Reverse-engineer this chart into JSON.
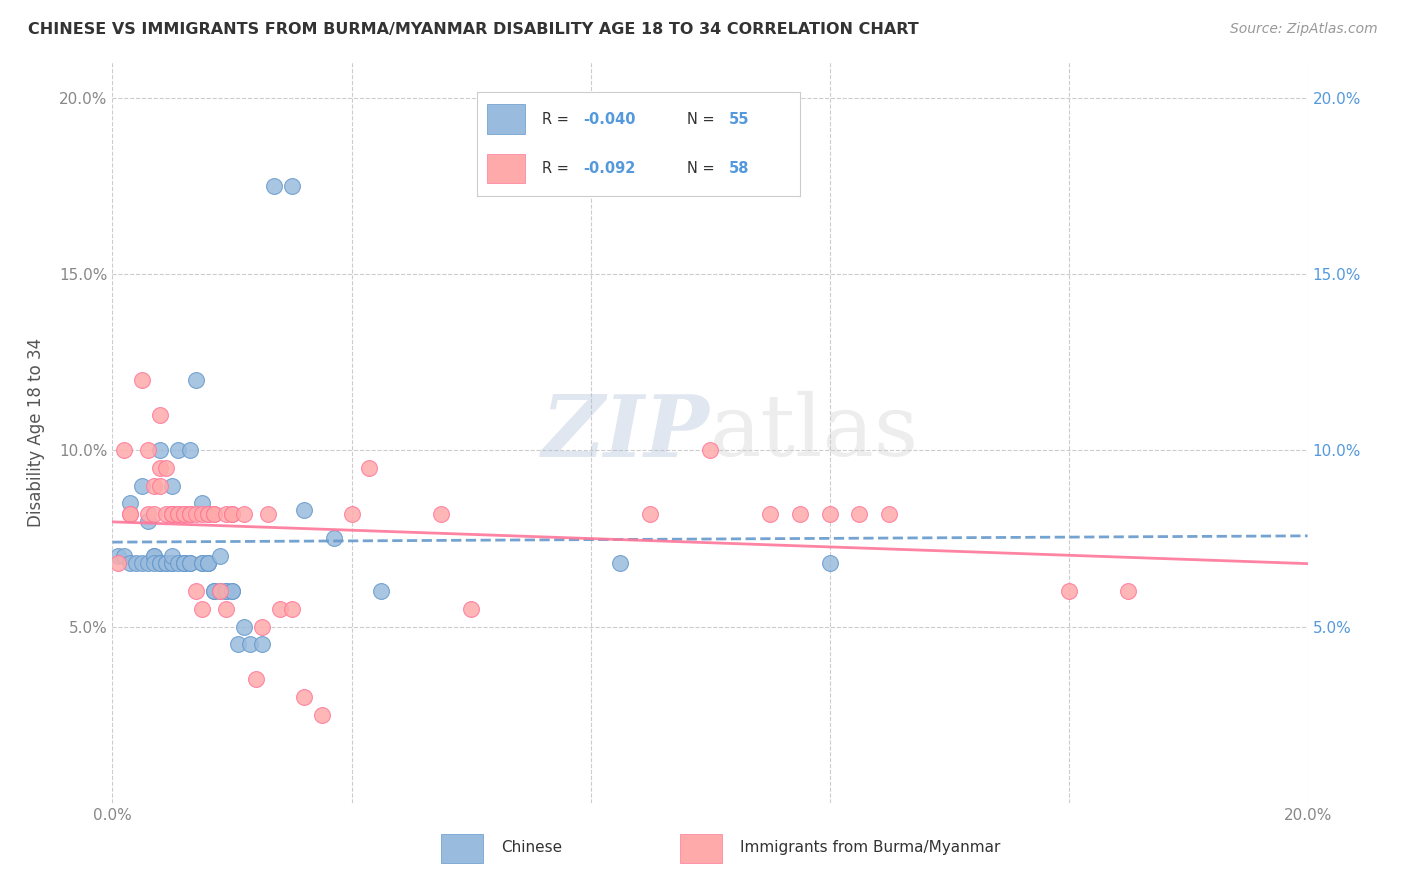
{
  "title": "CHINESE VS IMMIGRANTS FROM BURMA/MYANMAR DISABILITY AGE 18 TO 34 CORRELATION CHART",
  "source": "Source: ZipAtlas.com",
  "ylabel": "Disability Age 18 to 34",
  "xlim": [
    0.0,
    0.2
  ],
  "ylim": [
    0.0,
    0.21
  ],
  "yticks": [
    0.05,
    0.1,
    0.15,
    0.2
  ],
  "ytick_labels": [
    "5.0%",
    "10.0%",
    "15.0%",
    "20.0%"
  ],
  "xticks": [
    0.0,
    0.04,
    0.08,
    0.12,
    0.16,
    0.2
  ],
  "xtick_labels": [
    "0.0%",
    "",
    "",
    "",
    "",
    "20.0%"
  ],
  "legend_R1": "-0.040",
  "legend_N1": "55",
  "legend_R2": "-0.092",
  "legend_N2": "58",
  "color_chinese": "#99BBDD",
  "color_burma": "#FFAAAA",
  "color_trendline_chinese": "#6699CC",
  "color_trendline_burma": "#FF7799",
  "watermark_zip": "ZIP",
  "watermark_atlas": "atlas",
  "chinese_x": [
    0.001,
    0.002,
    0.003,
    0.003,
    0.004,
    0.005,
    0.005,
    0.006,
    0.006,
    0.007,
    0.007,
    0.007,
    0.008,
    0.008,
    0.008,
    0.009,
    0.009,
    0.01,
    0.01,
    0.01,
    0.01,
    0.011,
    0.011,
    0.012,
    0.012,
    0.012,
    0.013,
    0.013,
    0.013,
    0.014,
    0.015,
    0.015,
    0.015,
    0.016,
    0.016,
    0.016,
    0.017,
    0.017,
    0.018,
    0.018,
    0.019,
    0.019,
    0.02,
    0.02,
    0.021,
    0.022,
    0.023,
    0.025,
    0.027,
    0.03,
    0.032,
    0.037,
    0.045,
    0.085,
    0.12
  ],
  "chinese_y": [
    0.07,
    0.07,
    0.085,
    0.068,
    0.068,
    0.068,
    0.09,
    0.068,
    0.08,
    0.07,
    0.07,
    0.068,
    0.068,
    0.068,
    0.1,
    0.068,
    0.068,
    0.09,
    0.068,
    0.068,
    0.07,
    0.068,
    0.1,
    0.068,
    0.068,
    0.068,
    0.1,
    0.068,
    0.068,
    0.12,
    0.068,
    0.068,
    0.085,
    0.068,
    0.068,
    0.068,
    0.06,
    0.06,
    0.07,
    0.06,
    0.06,
    0.06,
    0.06,
    0.06,
    0.045,
    0.05,
    0.045,
    0.045,
    0.175,
    0.175,
    0.083,
    0.075,
    0.06,
    0.068,
    0.068
  ],
  "burma_x": [
    0.001,
    0.002,
    0.003,
    0.003,
    0.005,
    0.006,
    0.006,
    0.007,
    0.007,
    0.008,
    0.008,
    0.008,
    0.009,
    0.009,
    0.01,
    0.01,
    0.01,
    0.011,
    0.011,
    0.012,
    0.012,
    0.013,
    0.013,
    0.013,
    0.014,
    0.014,
    0.015,
    0.015,
    0.016,
    0.016,
    0.017,
    0.017,
    0.018,
    0.019,
    0.019,
    0.02,
    0.02,
    0.022,
    0.024,
    0.025,
    0.026,
    0.028,
    0.03,
    0.032,
    0.035,
    0.04,
    0.043,
    0.055,
    0.06,
    0.09,
    0.1,
    0.11,
    0.115,
    0.12,
    0.125,
    0.13,
    0.16,
    0.17
  ],
  "burma_y": [
    0.068,
    0.1,
    0.082,
    0.082,
    0.12,
    0.082,
    0.1,
    0.082,
    0.09,
    0.11,
    0.095,
    0.09,
    0.082,
    0.095,
    0.082,
    0.082,
    0.082,
    0.082,
    0.082,
    0.082,
    0.082,
    0.082,
    0.082,
    0.082,
    0.06,
    0.082,
    0.082,
    0.055,
    0.082,
    0.082,
    0.082,
    0.082,
    0.06,
    0.082,
    0.055,
    0.082,
    0.082,
    0.082,
    0.035,
    0.05,
    0.082,
    0.055,
    0.055,
    0.03,
    0.025,
    0.082,
    0.095,
    0.082,
    0.055,
    0.082,
    0.1,
    0.082,
    0.082,
    0.082,
    0.082,
    0.082,
    0.06,
    0.06
  ]
}
